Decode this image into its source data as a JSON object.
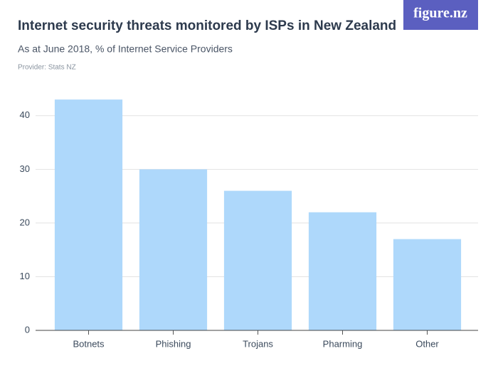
{
  "logo": "figure.nz",
  "chart_data": {
    "type": "bar",
    "title": "Internet security threats monitored by ISPs in New Zealand",
    "subtitle": "As at June 2018, % of Internet Service Providers",
    "source": "Provider: Stats NZ",
    "categories": [
      "Botnets",
      "Phishing",
      "Trojans",
      "Pharming",
      "Other"
    ],
    "values": [
      43,
      30,
      26,
      22,
      17
    ],
    "color": "#aed8fb",
    "ylim": [
      0,
      45
    ],
    "yticks": [
      0,
      10,
      20,
      30,
      40
    ],
    "grid": true
  }
}
